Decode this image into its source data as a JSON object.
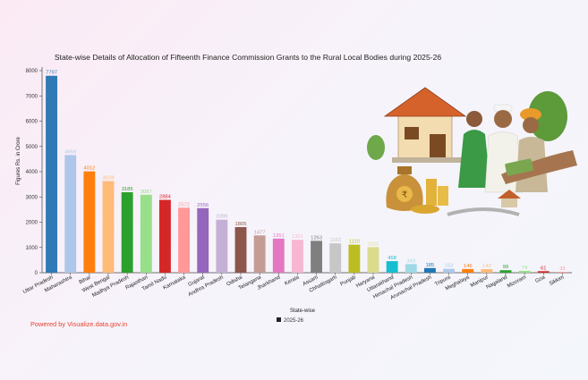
{
  "chart_data": {
    "type": "bar",
    "title": "State-wise Details of Allocation of Fifteenth Finance Commission Grants to the Rural Local Bodies during 2025-26",
    "xlabel": "State-wise",
    "ylabel": "Figures Rs. in Crore",
    "ylim": [
      0,
      8000
    ],
    "yticks": [
      0,
      1000,
      2000,
      3000,
      4000,
      5000,
      6000,
      7000,
      8000
    ],
    "legend": {
      "label": "2025-26",
      "placement": "bottom-center"
    },
    "categories": [
      "Uttar Pradesh",
      "Maharashtra",
      "Bihar",
      "West Bengal",
      "Madhya Pradesh",
      "Rajasthan",
      "Tamil Nadu",
      "Karnataka",
      "Gujarat",
      "Andhra Pradesh",
      "Odisha",
      "Telangana",
      "Jharkhand",
      "Kerala",
      "Assam",
      "Chhattisgarh",
      "Punjab",
      "Haryana",
      "Uttarakhand",
      "Himachal Pradesh",
      "Arunachal Pradesh",
      "Tripura",
      "Meghalaya",
      "Manipur",
      "Nagaland",
      "Mizoram",
      "Goa",
      "Sikkim"
    ],
    "values": [
      7797,
      4659,
      4012,
      3628,
      3185,
      3087,
      2884,
      2572,
      2556,
      2099,
      1805,
      1477,
      1351,
      1301,
      1263,
      1163,
      1110,
      1011,
      458,
      343,
      185,
      153,
      146,
      142,
      99,
      74,
      61,
      33
    ],
    "colors": [
      "#2f79b5",
      "#aec7e8",
      "#ff7f0e",
      "#ffbb78",
      "#2ca02c",
      "#98df8a",
      "#d62728",
      "#ff9896",
      "#9467bd",
      "#c5b0d5",
      "#8c564b",
      "#c49c94",
      "#e377c2",
      "#f7b6d2",
      "#7f7f7f",
      "#c7c7c7",
      "#bcbd22",
      "#dbdb8d",
      "#17becf",
      "#9edae5",
      "#1f77b4",
      "#aec7e8",
      "#ff7f0e",
      "#ffbb78",
      "#2ca02c",
      "#98df8a",
      "#d62728",
      "#ff9896"
    ]
  },
  "footer": "Powered by Visualize.data.gov.in"
}
